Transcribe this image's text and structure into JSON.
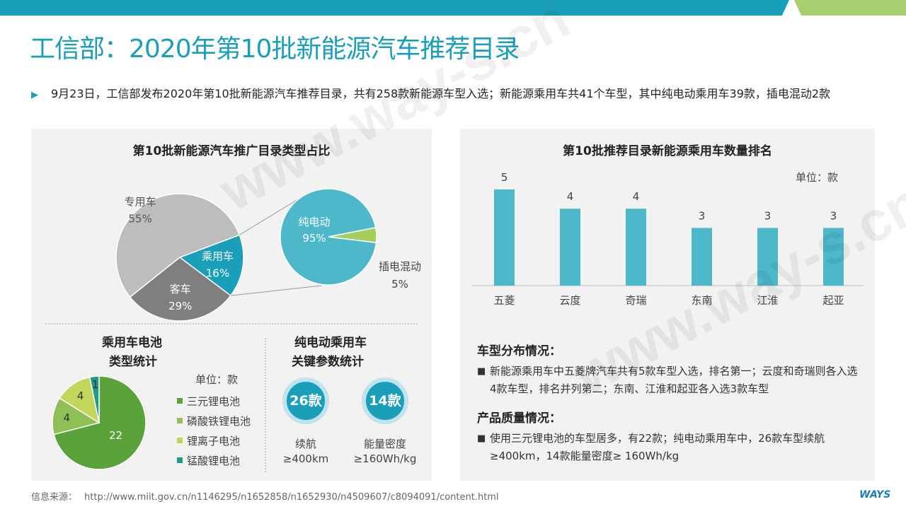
{
  "header": {
    "title": "工信部：2020年第10批新能源汽车推荐目录"
  },
  "bullet": "9月23日，工信部发布2020年第10批新能源汽车推荐目录，共有258款新能源车型入选；新能源乘用车共41个车型，其中纯电动乘用车39款，插电混动2款",
  "left_panel": {
    "pie_title": "第10批新能源汽车推广目录类型占比",
    "battery_title_1": "乘用车电池",
    "battery_title_2": "类型统计",
    "battery_unit": "单位：款",
    "ev_title_1": "纯电动乘用车",
    "ev_title_2": "关键参数统计",
    "kp1_value": "26款",
    "kp1_label_1": "续航",
    "kp1_label_2": "≥400km",
    "kp2_value": "14款",
    "kp2_label_1": "能量密度",
    "kp2_label_2": "≥160Wh/kg"
  },
  "right_panel": {
    "bar_title": "第10批推荐目录新能源乘用车数量排名",
    "unit": "单位：款",
    "sec1_title": "车型分布情况：",
    "sec1_text": "新能源乘用车中五菱牌汽车共有5款车型入选，排名第一；云度和奇瑞则各入选4款车型，排名并列第二；东南、江淮和起亚各入选3款车型",
    "sec2_title": "产品质量情况：",
    "sec2_text": "使用三元锂电池的车型居多，有22款；纯电动乘用车中，26款车型续航≥400km，14款能量密度≥ 160Wh/kg",
    "bullet_mark": "■"
  },
  "chart_data": [
    {
      "type": "pie",
      "title": "第10批新能源汽车推广目录类型占比",
      "categories": [
        "专用车",
        "乘用车",
        "客车"
      ],
      "values": [
        55,
        16,
        29
      ],
      "value_labels": [
        "55%",
        "16%",
        "29%"
      ],
      "colors": [
        "#bdbdbd",
        "#1a9fba",
        "#7f7f7f"
      ]
    },
    {
      "type": "pie",
      "categories": [
        "纯电动",
        "插电混动"
      ],
      "values": [
        95,
        5
      ],
      "value_labels": [
        "95%",
        "5%"
      ],
      "colors": [
        "#4cb8ca",
        "#a3cf5a"
      ]
    },
    {
      "type": "pie",
      "categories": [
        "三元锂电池",
        "磷酸铁锂电池",
        "锂离子电池",
        "锰酸锂电池"
      ],
      "values": [
        22,
        4,
        4,
        1
      ],
      "colors": [
        "#5aa33a",
        "#8fc055",
        "#c1d65a",
        "#1f9a8a"
      ]
    },
    {
      "type": "bar",
      "title": "第10批推荐目录新能源乘用车数量排名",
      "categories": [
        "五菱",
        "云度",
        "奇瑞",
        "东南",
        "江淮",
        "起亚"
      ],
      "values": [
        5,
        4,
        4,
        3,
        3,
        3
      ],
      "ylim": [
        0,
        5
      ],
      "color": "#4cb8ca"
    }
  ],
  "footer": {
    "source_label": "信息来源：",
    "source_url": "http://www.miit.gov.cn/n1146295/n1652858/n1652930/n4509607/c8094091/content.html",
    "logo": "WAYS"
  },
  "watermark": "www.way-s.cn"
}
